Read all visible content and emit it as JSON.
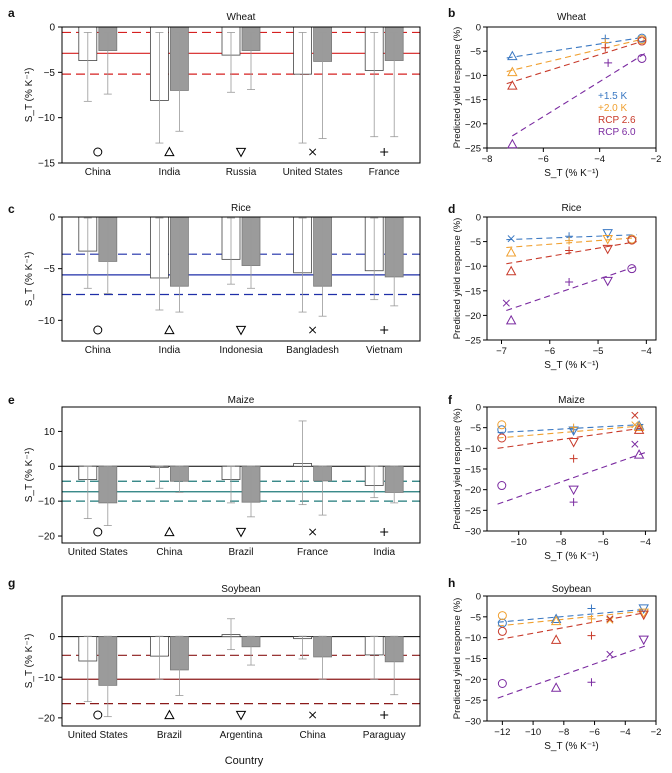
{
  "colors": {
    "open_bar": "#ffffff",
    "filled_bar": "#9b9b9b",
    "wheat_line": "#d62020",
    "rice_line": "#1f2fa8",
    "maize_line": "#1f7a7a",
    "soybean_line": "#8b1a1a",
    "plus15": "#3a78c2",
    "plus20": "#f0a030",
    "rcp26": "#c83a2a",
    "rcp60": "#7a2aa0"
  },
  "x_axis_title": "Country",
  "chart_data": [
    {
      "panel": "a",
      "type": "bar",
      "title": "Wheat",
      "ylabel": "S_T (% K⁻¹)",
      "categories": [
        "China",
        "India",
        "Russia",
        "United States",
        "France"
      ],
      "symbols": [
        "○",
        "△",
        "▽",
        "×",
        "+"
      ],
      "series": [
        {
          "values": [
            -3.7,
            -8.1,
            -3.1,
            -5.2,
            -4.8
          ],
          "err_low": [
            -8.2,
            -12.8,
            -7.2,
            -12.8,
            -12.1
          ],
          "err_high": [
            -0.6,
            -0.6,
            -0.6,
            -0.6,
            -0.6
          ]
        },
        {
          "values": [
            -2.6,
            -7.0,
            -2.6,
            -3.8,
            -3.7
          ],
          "err_low": [
            -7.4,
            -11.5,
            -6.9,
            -12.3,
            -12.1
          ],
          "err_high": [
            -0.6,
            -0.6,
            -0.6,
            -0.6,
            -0.6
          ]
        }
      ],
      "reference": {
        "mean": -2.9,
        "low": -5.2,
        "high": -0.6
      },
      "ylim": [
        -15,
        0
      ],
      "yticks": [
        0,
        -5,
        -10,
        -15
      ]
    },
    {
      "panel": "c",
      "type": "bar",
      "title": "Rice",
      "ylabel": "S_T (% K⁻¹)",
      "categories": [
        "China",
        "India",
        "Indonesia",
        "Bangladesh",
        "Vietnam"
      ],
      "symbols": [
        "○",
        "△",
        "▽",
        "×",
        "+"
      ],
      "series": [
        {
          "values": [
            -3.3,
            -5.9,
            -4.1,
            -5.4,
            -5.2
          ],
          "err_low": [
            -6.9,
            -9.0,
            -6.5,
            -9.2,
            -8.0
          ],
          "err_high": [
            -0.1,
            -0.1,
            -0.1,
            -0.1,
            -0.1
          ]
        },
        {
          "values": [
            -4.3,
            -6.7,
            -4.7,
            -6.7,
            -5.8
          ],
          "err_low": [
            -7.4,
            -9.2,
            -6.9,
            -9.6,
            -8.6
          ],
          "err_high": [
            -0.1,
            -0.1,
            -0.1,
            -0.1,
            -0.1
          ]
        }
      ],
      "reference": {
        "mean": -5.6,
        "low": -7.5,
        "high": -3.6
      },
      "ylim": [
        -12,
        0
      ],
      "yticks": [
        0,
        -5,
        -10
      ]
    },
    {
      "panel": "e",
      "type": "bar",
      "title": "Maize",
      "ylabel": "S_T (% K⁻¹)",
      "categories": [
        "United States",
        "China",
        "Brazil",
        "France",
        "India"
      ],
      "symbols": [
        "○",
        "△",
        "▽",
        "×",
        "+"
      ],
      "series": [
        {
          "values": [
            -3.8,
            -0.3,
            -3.8,
            0.8,
            -5.5
          ],
          "err_low": [
            -15.0,
            -6.3,
            -10.5,
            -11.0,
            -9.0
          ],
          "err_high": [
            0.1,
            0.1,
            0.1,
            13.0,
            0.1
          ]
        },
        {
          "values": [
            -10.5,
            -4.3,
            -10.3,
            -4.2,
            -7.5
          ],
          "err_low": [
            -17.0,
            -7.5,
            -14.5,
            -14.0,
            -10.5
          ],
          "err_high": [
            0.1,
            0.1,
            0.1,
            0.1,
            0.1
          ]
        }
      ],
      "reference": {
        "mean": -7.3,
        "low": -10.0,
        "high": -4.3
      },
      "ylim": [
        -22,
        17
      ],
      "yticks": [
        10,
        0,
        -10,
        -20
      ]
    },
    {
      "panel": "g",
      "type": "bar",
      "title": "Soybean",
      "ylabel": "S_T (% K⁻¹)",
      "categories": [
        "United States",
        "Brazil",
        "Argentina",
        "China",
        "Paraguay"
      ],
      "symbols": [
        "○",
        "△",
        "▽",
        "×",
        "+"
      ],
      "series": [
        {
          "values": [
            -6.0,
            -4.8,
            0.5,
            -0.5,
            -4.5
          ],
          "err_low": [
            -16.0,
            -10.5,
            -3.2,
            -5.5,
            -10.5
          ],
          "err_high": [
            0.1,
            0.1,
            4.4,
            0.1,
            0.1
          ]
        },
        {
          "values": [
            -12.0,
            -8.2,
            -2.5,
            -5.0,
            -6.2
          ],
          "err_low": [
            -19.7,
            -14.5,
            -7.0,
            -10.5,
            -14.3
          ],
          "err_high": [
            0.1,
            0.1,
            0.1,
            0.1,
            0.1
          ]
        }
      ],
      "reference": {
        "mean": -10.5,
        "low": -16.5,
        "high": -4.6
      },
      "ylim": [
        -22,
        10
      ],
      "yticks": [
        0,
        -10,
        -20
      ]
    },
    {
      "panel": "b",
      "type": "scatter",
      "title": "Wheat",
      "xlabel": "S_T (% K⁻¹)",
      "ylabel": "Predicted yield response (%)",
      "xlim": [
        -8,
        -2
      ],
      "xticks": [
        -8,
        -6,
        -4,
        -2
      ],
      "ylim": [
        -25,
        0
      ],
      "yticks": [
        0,
        -5,
        -10,
        -15,
        -20,
        -25
      ],
      "legend": [
        "+1.5 K",
        "+2.0 K",
        "RCP 2.6",
        "RCP 6.0"
      ],
      "series": [
        {
          "name": "+1.5 K",
          "x": [
            -7.1,
            -3.8,
            -2.5
          ],
          "y": [
            -6.0,
            -2.4,
            -2.3
          ],
          "markers": [
            "△",
            "+",
            "○"
          ]
        },
        {
          "name": "+2.0 K",
          "x": [
            -7.1,
            -3.8,
            -2.5
          ],
          "y": [
            -9.3,
            -3.2,
            -2.6
          ],
          "markers": [
            "△",
            "+",
            "○"
          ]
        },
        {
          "name": "RCP 2.6",
          "x": [
            -7.1,
            -3.8,
            -2.5
          ],
          "y": [
            -12.1,
            -4.3,
            -2.9
          ],
          "markers": [
            "△",
            "+",
            "○"
          ]
        },
        {
          "name": "RCP 6.0",
          "x": [
            -7.1,
            -3.7,
            -2.5
          ],
          "y": [
            -24.2,
            -7.4,
            -6.5
          ],
          "markers": [
            "△",
            "+",
            "○"
          ]
        }
      ],
      "trend": [
        {
          "x": [
            -7.3,
            -2.4
          ],
          "y": [
            -6.4,
            -2.1
          ]
        },
        {
          "x": [
            -7.3,
            -2.4
          ],
          "y": [
            -9.2,
            -2.4
          ]
        },
        {
          "x": [
            -7.3,
            -2.4
          ],
          "y": [
            -11.7,
            -2.8
          ]
        },
        {
          "x": [
            -7.1,
            -2.4
          ],
          "y": [
            -22.5,
            -5.5
          ]
        }
      ]
    },
    {
      "panel": "d",
      "type": "scatter",
      "title": "Rice",
      "xlabel": "S_T (% K⁻¹)",
      "ylabel": "Predicted yield response (%)",
      "xlim": [
        -7.3,
        -3.8
      ],
      "xticks": [
        -7,
        -6,
        -5,
        -4
      ],
      "ylim": [
        -25,
        0
      ],
      "yticks": [
        0,
        -5,
        -10,
        -15,
        -20,
        -25
      ],
      "series": [
        {
          "name": "+1.5 K",
          "x": [
            -6.8,
            -5.6,
            -4.8,
            -4.3
          ],
          "y": [
            -4.4,
            -3.9,
            -3.3,
            -4.5
          ],
          "markers": [
            "×",
            "+",
            "▽",
            "○"
          ]
        },
        {
          "name": "+2.0 K",
          "x": [
            -6.8,
            -5.6,
            -4.8,
            -4.3
          ],
          "y": [
            -7.2,
            -4.8,
            -4.5,
            -4.5
          ],
          "markers": [
            "△",
            "+",
            "▽",
            "○"
          ]
        },
        {
          "name": "RCP 2.6",
          "x": [
            -6.8,
            -5.6,
            -4.8,
            -4.3
          ],
          "y": [
            -11.0,
            -6.8,
            -6.5,
            -4.7
          ],
          "markers": [
            "△",
            "+",
            "▽",
            "○"
          ]
        },
        {
          "name": "RCP 6.0",
          "x": [
            -6.9,
            -6.8,
            -5.6,
            -4.8,
            -4.3
          ],
          "y": [
            -17.5,
            -21.0,
            -13.2,
            -13.0,
            -10.5
          ],
          "markers": [
            "×",
            "△",
            "+",
            "▽",
            "○"
          ]
        }
      ],
      "trend": [
        {
          "x": [
            -6.9,
            -4.2
          ],
          "y": [
            -4.6,
            -3.6
          ]
        },
        {
          "x": [
            -6.9,
            -4.2
          ],
          "y": [
            -6.2,
            -4.2
          ]
        },
        {
          "x": [
            -6.9,
            -4.2
          ],
          "y": [
            -9.5,
            -5.0
          ]
        },
        {
          "x": [
            -6.9,
            -4.2
          ],
          "y": [
            -19.0,
            -10.0
          ]
        }
      ]
    },
    {
      "panel": "f",
      "type": "scatter",
      "title": "Maize",
      "xlabel": "S_T (% K⁻¹)",
      "ylabel": "Predicted yield response (%)",
      "xlim": [
        -11.5,
        -3.5
      ],
      "xticks": [
        -10,
        -8,
        -6,
        -4
      ],
      "ylim": [
        -30,
        0
      ],
      "yticks": [
        0,
        -5,
        -10,
        -15,
        -20,
        -25,
        -30
      ],
      "series": [
        {
          "name": "+1.5 K",
          "x": [
            -10.8,
            -7.4,
            -7.4,
            -4.3
          ],
          "y": [
            -5.5,
            -5.5,
            -5.7,
            -4.5
          ],
          "markers": [
            "○",
            "+",
            "▽",
            "△"
          ]
        },
        {
          "name": "+2.0 K",
          "x": [
            -10.8,
            -7.4,
            -4.5,
            -4.3
          ],
          "y": [
            -4.3,
            -5.0,
            -4.3,
            -4.8
          ],
          "markers": [
            "○",
            "+",
            "×",
            "△"
          ]
        },
        {
          "name": "RCP 2.6",
          "x": [
            -10.8,
            -7.4,
            -7.4,
            -4.5,
            -4.3
          ],
          "y": [
            -7.5,
            -8.5,
            -12.5,
            -2.0,
            -5.5
          ],
          "markers": [
            "○",
            "▽",
            "+",
            "×",
            "△"
          ]
        },
        {
          "name": "RCP 6.0",
          "x": [
            -10.8,
            -7.4,
            -7.4,
            -4.5,
            -4.3
          ],
          "y": [
            -19.0,
            -20.0,
            -23.0,
            -9.0,
            -11.5
          ],
          "markers": [
            "○",
            "▽",
            "+",
            "×",
            "△"
          ]
        }
      ],
      "trend": [
        {
          "x": [
            -11.0,
            -4.0
          ],
          "y": [
            -6.2,
            -4.2
          ]
        },
        {
          "x": [
            -11.0,
            -4.0
          ],
          "y": [
            -7.5,
            -4.5
          ]
        },
        {
          "x": [
            -11.0,
            -4.0
          ],
          "y": [
            -10.0,
            -5.0
          ]
        },
        {
          "x": [
            -11.0,
            -4.0
          ],
          "y": [
            -23.5,
            -11.0
          ]
        }
      ]
    },
    {
      "panel": "h",
      "type": "scatter",
      "title": "Soybean",
      "xlabel": "S_T (% K⁻¹)",
      "ylabel": "Predicted yield response (%)",
      "xlim": [
        -13,
        -2
      ],
      "xticks": [
        -12,
        -10,
        -8,
        -6,
        -4,
        -2
      ],
      "ylim": [
        -30,
        0
      ],
      "yticks": [
        0,
        -5,
        -10,
        -15,
        -20,
        -25,
        -30
      ],
      "series": [
        {
          "name": "+1.5 K",
          "x": [
            -12.0,
            -8.5,
            -6.2,
            -5.0,
            -2.8
          ],
          "y": [
            -6.5,
            -5.5,
            -3.0,
            -5.5,
            -3.0
          ],
          "markers": [
            "○",
            "△",
            "+",
            "×",
            "▽"
          ]
        },
        {
          "name": "+2.0 K",
          "x": [
            -12.0,
            -8.5,
            -6.2,
            -5.0,
            -2.8
          ],
          "y": [
            -4.7,
            -6.0,
            -5.5,
            -5.8,
            -4.0
          ],
          "markers": [
            "○",
            "△",
            "+",
            "×",
            "▽"
          ]
        },
        {
          "name": "RCP 2.6",
          "x": [
            -12.0,
            -8.5,
            -6.2,
            -5.0,
            -2.8
          ],
          "y": [
            -8.5,
            -10.5,
            -9.5,
            -5.5,
            -4.5
          ],
          "markers": [
            "○",
            "△",
            "+",
            "×",
            "▽"
          ]
        },
        {
          "name": "RCP 6.0",
          "x": [
            -12.0,
            -8.5,
            -6.2,
            -5.0,
            -2.8
          ],
          "y": [
            -21.0,
            -22.0,
            -20.7,
            -14.0,
            -10.5
          ],
          "markers": [
            "○",
            "△",
            "+",
            "×",
            "▽"
          ]
        }
      ],
      "trend": [
        {
          "x": [
            -12.3,
            -2.7
          ],
          "y": [
            -6.3,
            -3.2
          ]
        },
        {
          "x": [
            -12.3,
            -2.7
          ],
          "y": [
            -7.2,
            -3.6
          ]
        },
        {
          "x": [
            -12.3,
            -2.7
          ],
          "y": [
            -10.5,
            -4.0
          ]
        },
        {
          "x": [
            -12.3,
            -2.7
          ],
          "y": [
            -24.5,
            -12.0
          ]
        }
      ]
    }
  ]
}
